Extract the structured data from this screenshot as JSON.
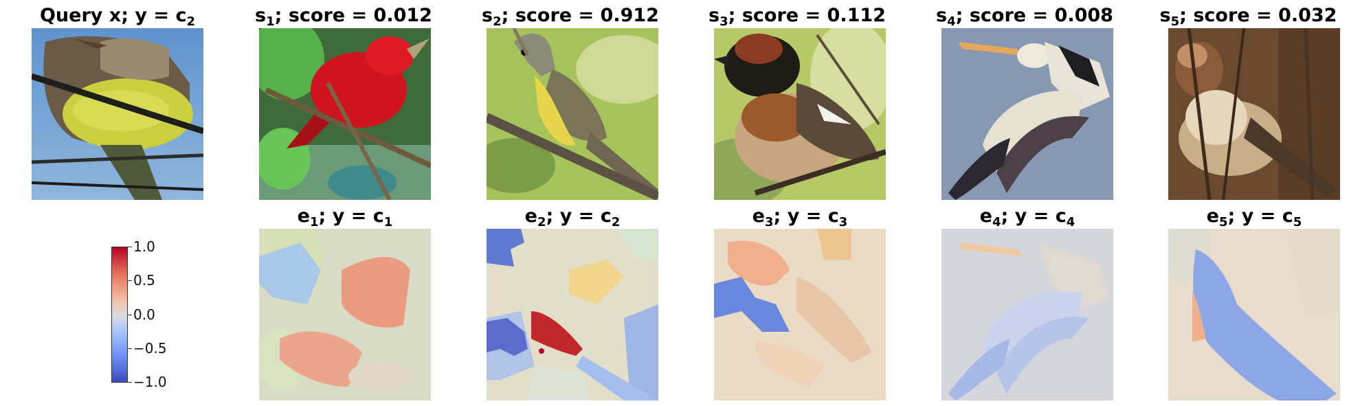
{
  "titles": {
    "query": {
      "pre": "Query ",
      "var": "x",
      "sep": "; ",
      "lhs": "y",
      "eq": " = ",
      "cls": "c",
      "cls_sub": "2"
    },
    "samples": [
      {
        "s": "s",
        "sub": "1",
        "label": "; score = ",
        "score": "0.012"
      },
      {
        "s": "s",
        "sub": "2",
        "label": "; score = ",
        "score": "0.912"
      },
      {
        "s": "s",
        "sub": "3",
        "label": "; score = ",
        "score": "0.112"
      },
      {
        "s": "s",
        "sub": "4",
        "label": "; score = ",
        "score": "0.008"
      },
      {
        "s": "s",
        "sub": "5",
        "label": "; score = ",
        "score": "0.032"
      }
    ],
    "explanations": [
      {
        "e": "e",
        "sub": "1",
        "sep": "; ",
        "lhs": "y",
        "eq": " = ",
        "cls": "c",
        "cls_sub": "1"
      },
      {
        "e": "e",
        "sub": "2",
        "sep": "; ",
        "lhs": "y",
        "eq": " = ",
        "cls": "c",
        "cls_sub": "2"
      },
      {
        "e": "e",
        "sub": "3",
        "sep": "; ",
        "lhs": "y",
        "eq": " = ",
        "cls": "c",
        "cls_sub": "3"
      },
      {
        "e": "e",
        "sub": "4",
        "sep": "; ",
        "lhs": "y",
        "eq": " = ",
        "cls": "c",
        "cls_sub": "4"
      },
      {
        "e": "e",
        "sub": "5",
        "sep": "; ",
        "lhs": "y",
        "eq": " = ",
        "cls": "c",
        "cls_sub": "5"
      }
    ]
  },
  "colorbar": {
    "ticks": [
      "1.0",
      "0.5",
      "0.0",
      "−0.5",
      "−1.0"
    ],
    "colormap": [
      "#b40426",
      "#dddcdc",
      "#3b4cc0"
    ]
  },
  "images": {
    "query": "yellow-bellied flycatcher perched on a branch",
    "s1": "red tanager among green leaves",
    "s2": "yellow-bellied flycatcher on a branch",
    "s3": "chestnut-headed bird on a branch",
    "s4": "white pelican in flight",
    "s5": "sparrow perched on twigs"
  }
}
